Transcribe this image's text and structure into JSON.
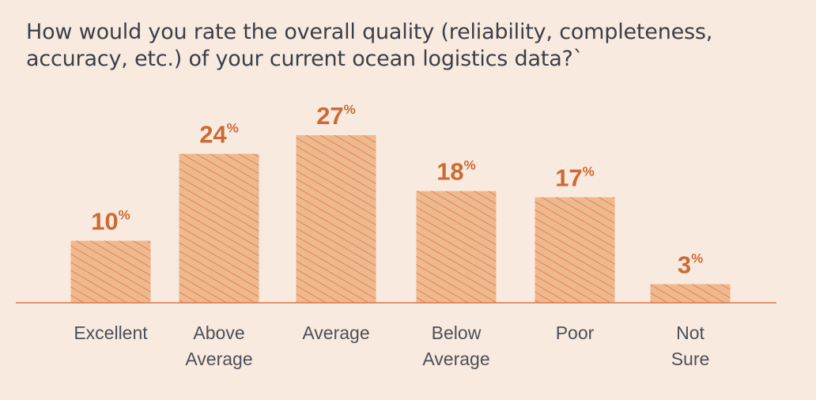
{
  "chart_data": {
    "type": "bar",
    "title": "How would you rate the overall quality (reliability, completeness, accuracy, etc.) of your current ocean logistics data?`",
    "categories": [
      [
        "Excellent"
      ],
      [
        "Above",
        "Average"
      ],
      [
        "Average"
      ],
      [
        "Below",
        "Average"
      ],
      [
        "Poor"
      ],
      [
        "Not",
        "Sure"
      ]
    ],
    "values": [
      10,
      24,
      27,
      18,
      17,
      3
    ],
    "unit": "%",
    "xlabel": "",
    "ylabel": "",
    "ylim": [
      0,
      30
    ],
    "grid": false,
    "legend": "none"
  },
  "colors": {
    "background": "#f9eadf",
    "bar_fill": "#efb98e",
    "bar_hatch": "#d9764a",
    "value_label": "#cc6a35",
    "baseline": "#d9764a",
    "category_label": "#4c505b",
    "title": "#3b3f49"
  }
}
